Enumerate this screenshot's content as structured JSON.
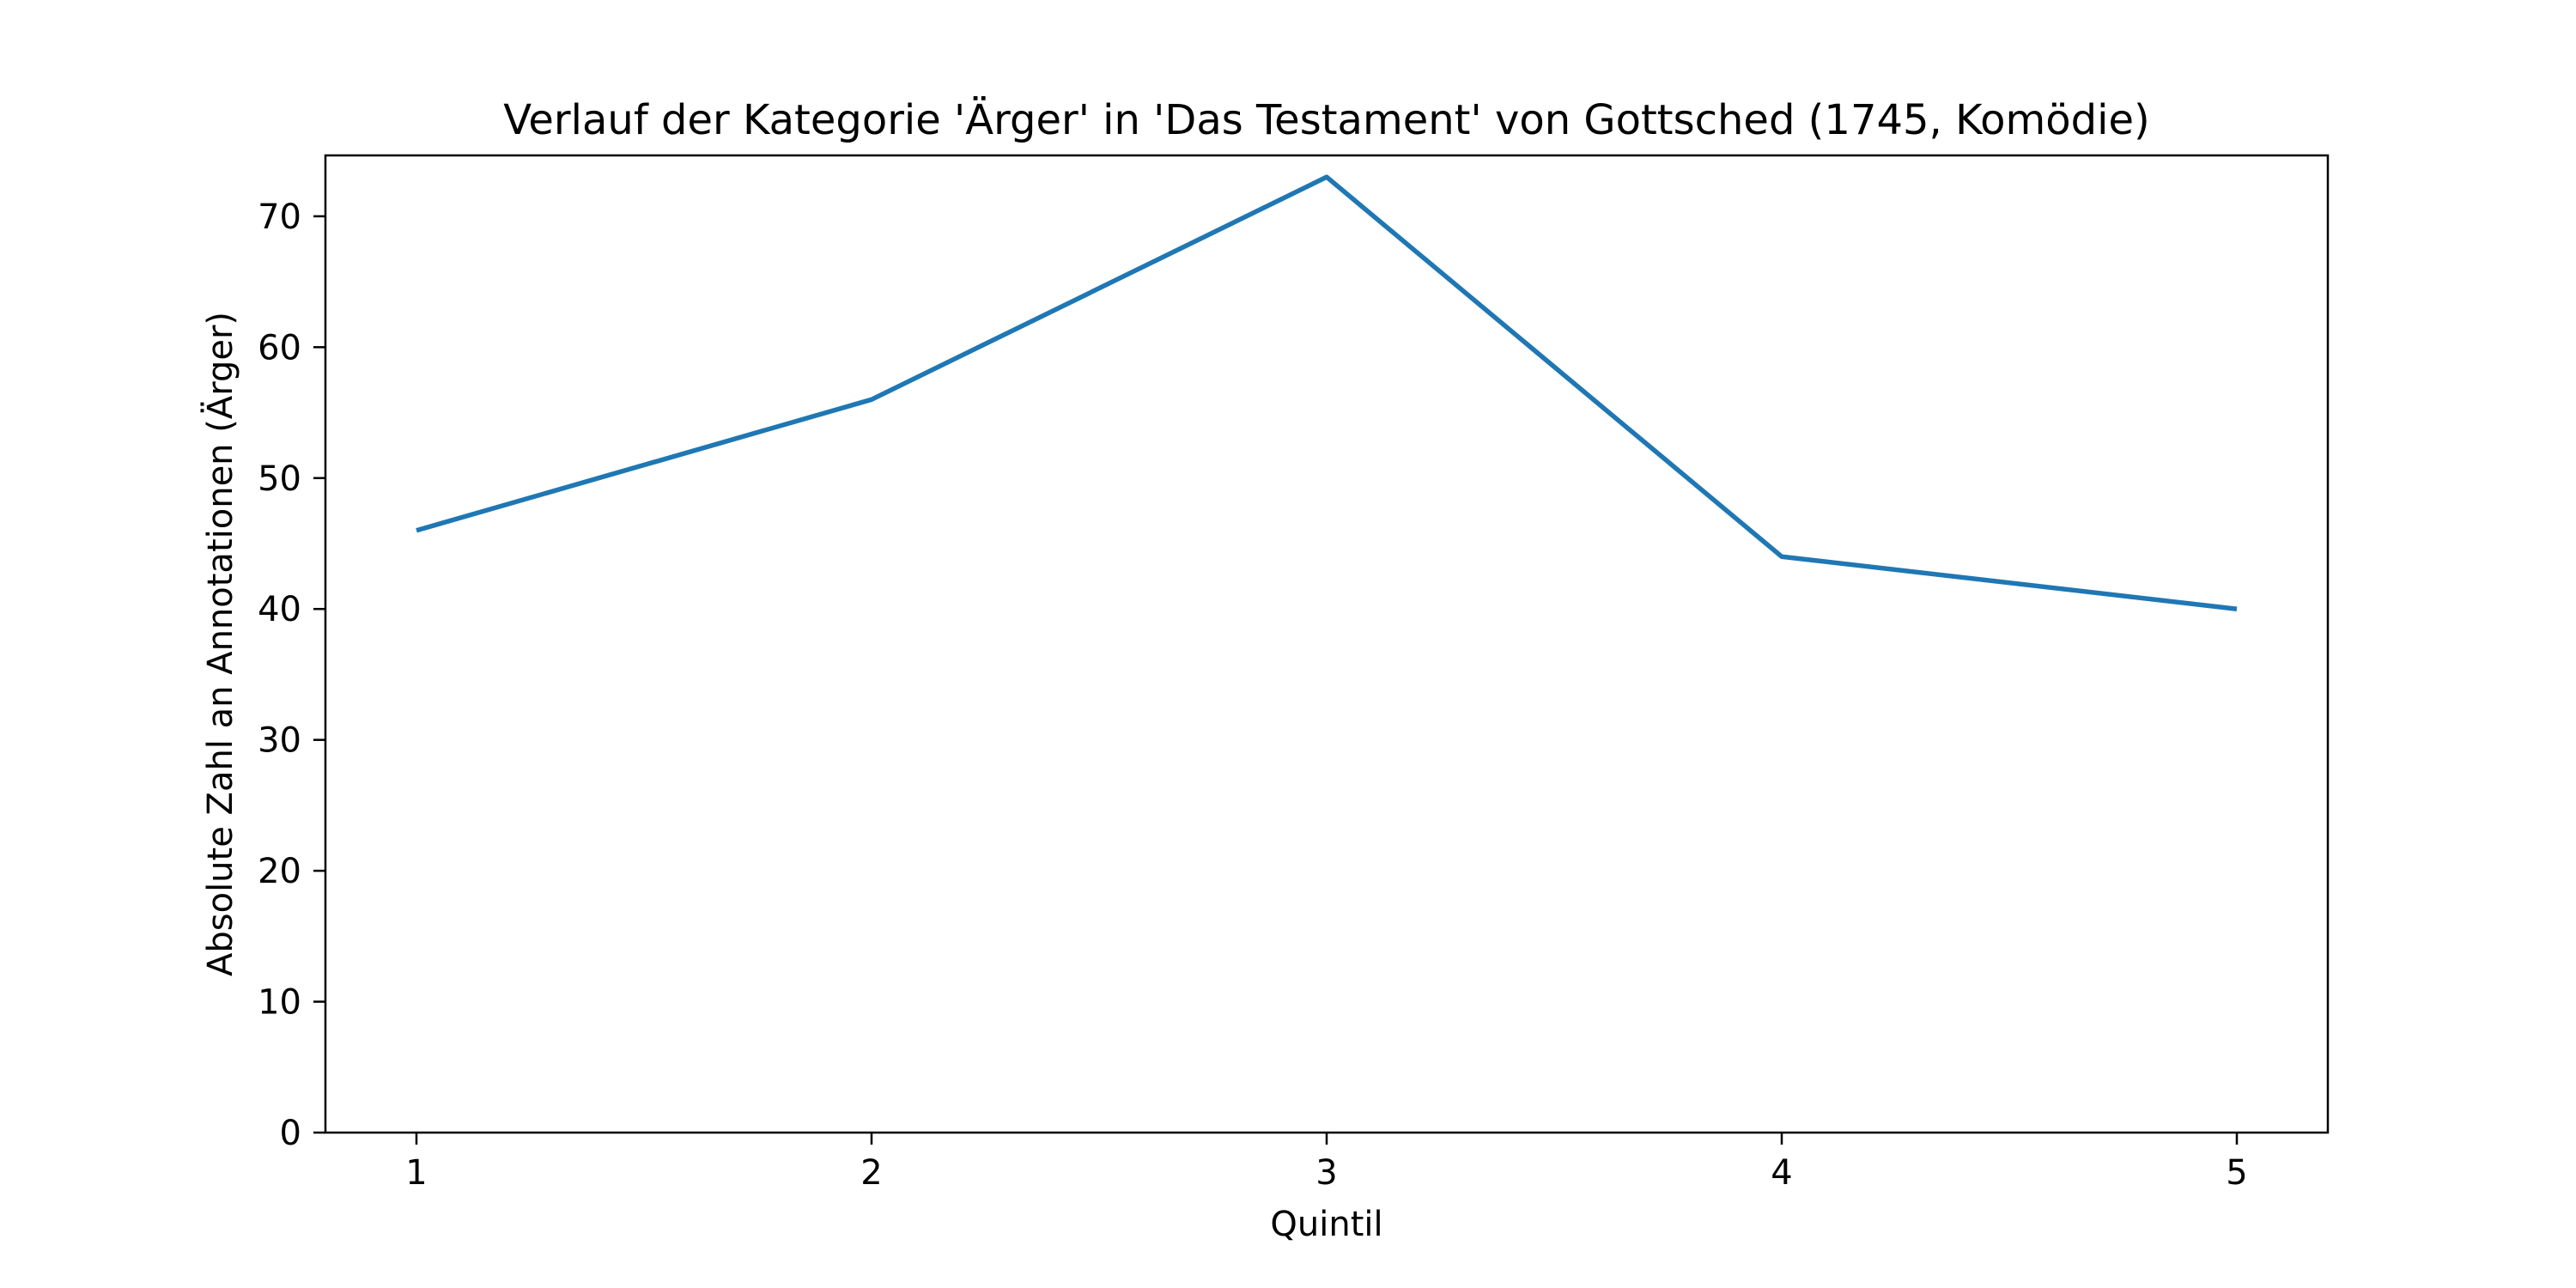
{
  "chart_data": {
    "type": "line",
    "title": "Verlauf der Kategorie 'Ärger' in 'Das Testament' von Gottsched (1745, Komödie)",
    "xlabel": "Quintil",
    "ylabel": "Absolute Zahl an Annotationen (Ärger)",
    "x": [
      1,
      2,
      3,
      4,
      5
    ],
    "series": [
      {
        "values": [
          46,
          56,
          73,
          44,
          40
        ],
        "color": "#1f77b4"
      }
    ],
    "xlim": [
      0.8,
      5.2
    ],
    "ylim": [
      0,
      74.65
    ],
    "xticks": [
      1,
      2,
      3,
      4,
      5
    ],
    "yticks": [
      0,
      10,
      20,
      30,
      40,
      50,
      60,
      70
    ],
    "grid": false,
    "legend": "none"
  }
}
